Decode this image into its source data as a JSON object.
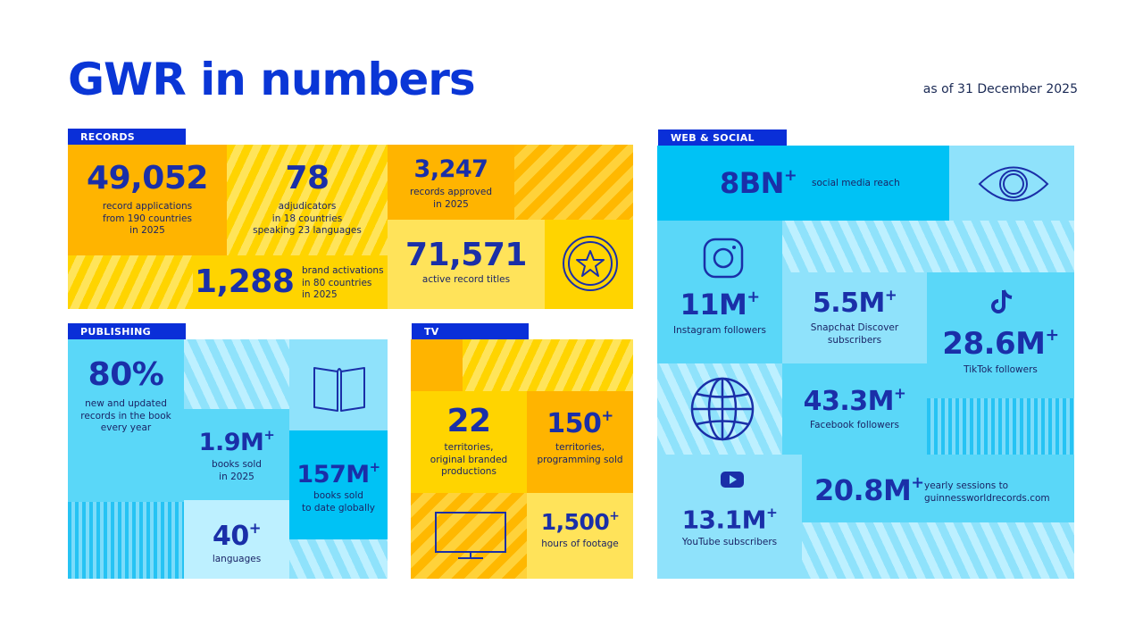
{
  "header": {
    "title": "GWR in numbers",
    "as_of": "as of 31 December 2025"
  },
  "records": {
    "tag": "RECORDS",
    "applications": {
      "value": "49,052",
      "label": "record applications\nfrom 190 countries\nin 2025"
    },
    "adjudicators": {
      "value": "78",
      "label": "adjudicators\nin 18 countries\nspeaking 23 languages"
    },
    "approved": {
      "value": "3,247",
      "label": "records approved\nin 2025"
    },
    "brand": {
      "value": "1,288",
      "label": "brand activations\nin 80 countries\nin 2025"
    },
    "active": {
      "value": "71,571",
      "label": "active record titles"
    }
  },
  "publishing": {
    "tag": "PUBLISHING",
    "new_records": {
      "value": "80%",
      "label": "new and updated\nrecords in the book\nevery year"
    },
    "books_2025": {
      "value": "1.9M",
      "plus": "+",
      "label": "books sold\nin 2025"
    },
    "books_total": {
      "value": "157M",
      "plus": "+",
      "label": "books sold\nto date globally"
    },
    "languages": {
      "value": "40",
      "plus": "+",
      "label": "languages"
    }
  },
  "tv": {
    "tag": "TV",
    "territories": {
      "value": "22",
      "label": "territories,\noriginal branded\nproductions"
    },
    "programming": {
      "value": "150",
      "plus": "+",
      "label": "territories,\nprogramming sold"
    },
    "footage": {
      "value": "1,500",
      "plus": "+",
      "label": "hours of footage"
    }
  },
  "social": {
    "tag": "WEB & SOCIAL",
    "reach": {
      "value": "8BN",
      "plus": "+",
      "label": "social media reach"
    },
    "instagram": {
      "value": "11M",
      "plus": "+",
      "label": "Instagram followers"
    },
    "snapchat": {
      "value": "5.5M",
      "plus": "+",
      "label": "Snapchat Discover\nsubscribers"
    },
    "tiktok": {
      "value": "28.6M",
      "plus": "+",
      "label": "TikTok followers"
    },
    "facebook": {
      "value": "43.3M",
      "plus": "+",
      "label": "Facebook followers"
    },
    "youtube": {
      "value": "13.1M",
      "plus": "+",
      "label": "YouTube subscribers"
    },
    "sessions": {
      "value": "20.8M",
      "plus": "+",
      "label": "yearly sessions to\nguinnessworldrecords.com"
    }
  },
  "colors": {
    "brand_blue": "#0a36d6",
    "yellow": "#ffd400",
    "orange": "#ffb400",
    "sky": "#8fe2fb",
    "cyan": "#00c2f5"
  }
}
